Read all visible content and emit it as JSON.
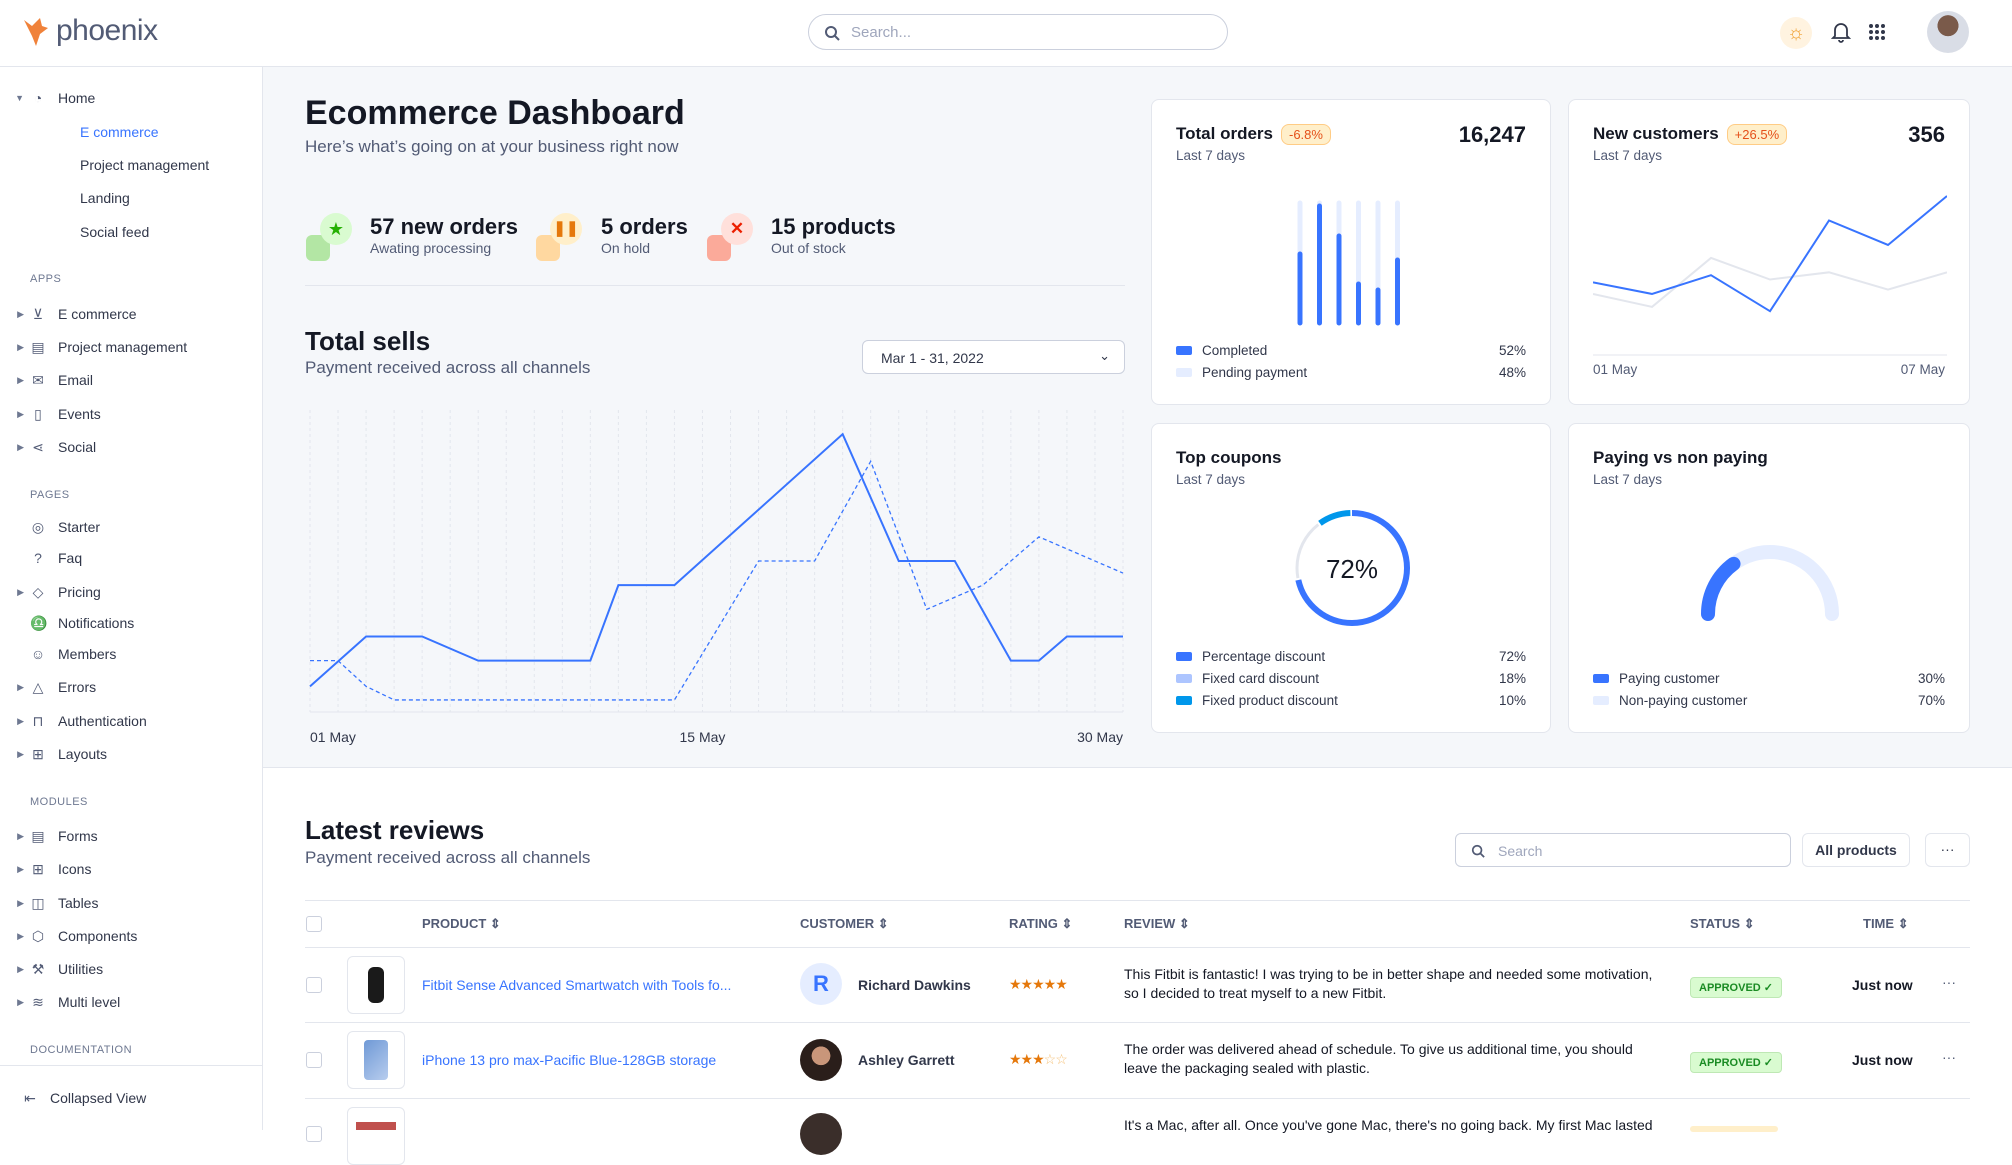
{
  "header": {
    "brand": "phoenix",
    "search_placeholder": "Search...",
    "icons": [
      "sun-icon",
      "bell-icon",
      "apps-grid-icon",
      "user-avatar"
    ]
  },
  "sidebar": {
    "home": {
      "label": "Home",
      "children": [
        "E commerce",
        "Project management",
        "Landing",
        "Social feed"
      ],
      "active": "E commerce"
    },
    "sections": [
      {
        "title": "APPS",
        "items": [
          {
            "label": "E commerce",
            "icon": "cart-icon",
            "expandable": true
          },
          {
            "label": "Project management",
            "icon": "clipboard-icon",
            "expandable": true
          },
          {
            "label": "Email",
            "icon": "mail-icon",
            "expandable": true
          },
          {
            "label": "Events",
            "icon": "bookmark-icon",
            "expandable": true
          },
          {
            "label": "Social",
            "icon": "share-icon",
            "expandable": true
          }
        ]
      },
      {
        "title": "PAGES",
        "items": [
          {
            "label": "Starter",
            "icon": "compass-icon",
            "expandable": false
          },
          {
            "label": "Faq",
            "icon": "help-circle-icon",
            "expandable": false
          },
          {
            "label": "Pricing",
            "icon": "tag-icon",
            "expandable": true
          },
          {
            "label": "Notifications",
            "icon": "bell-icon",
            "expandable": false
          },
          {
            "label": "Members",
            "icon": "users-icon",
            "expandable": false
          },
          {
            "label": "Errors",
            "icon": "alert-triangle-icon",
            "expandable": true
          },
          {
            "label": "Authentication",
            "icon": "lock-icon",
            "expandable": true
          },
          {
            "label": "Layouts",
            "icon": "layout-icon",
            "expandable": true
          }
        ]
      },
      {
        "title": "MODULES",
        "items": [
          {
            "label": "Forms",
            "icon": "file-text-icon",
            "expandable": true
          },
          {
            "label": "Icons",
            "icon": "grid-icon",
            "expandable": true
          },
          {
            "label": "Tables",
            "icon": "columns-icon",
            "expandable": true
          },
          {
            "label": "Components",
            "icon": "package-icon",
            "expandable": true
          },
          {
            "label": "Utilities",
            "icon": "tool-icon",
            "expandable": true
          },
          {
            "label": "Multi level",
            "icon": "layers-icon",
            "expandable": true
          }
        ]
      },
      {
        "title": "DOCUMENTATION",
        "items": []
      }
    ],
    "collapse_label": "Collapsed View"
  },
  "dashboard": {
    "title": "Ecommerce Dashboard",
    "subtitle": "Here’s what’s going on at your business right now",
    "stats": [
      {
        "value": "57 new orders",
        "label": "Awating processing",
        "icon": "star-icon",
        "color": "#25b003"
      },
      {
        "value": "5 orders",
        "label": "On hold",
        "icon": "pause-icon",
        "color": "#e5780b"
      },
      {
        "value": "15 products",
        "label": "Out of stock",
        "icon": "x-icon",
        "color": "#ec1f00"
      }
    ]
  },
  "total_sells": {
    "title": "Total sells",
    "subtitle": "Payment received across all channels",
    "date_range": "Mar 1 - 31, 2022"
  },
  "cards": {
    "total_orders": {
      "title": "Total orders",
      "badge": "-6.8%",
      "value": "16,247",
      "period": "Last 7 days",
      "legend": [
        {
          "label": "Completed",
          "value": "52%",
          "color": "#3874ff"
        },
        {
          "label": "Pending payment",
          "value": "48%",
          "color": "#e5edff"
        }
      ]
    },
    "new_customers": {
      "title": "New customers",
      "badge": "+26.5%",
      "value": "356",
      "period": "Last 7 days",
      "x_start": "01 May",
      "x_end": "07 May"
    },
    "top_coupons": {
      "title": "Top coupons",
      "period": "Last 7 days",
      "center": "72%",
      "legend": [
        {
          "label": "Percentage discount",
          "value": "72%",
          "color": "#3874ff"
        },
        {
          "label": "Fixed card discount",
          "value": "18%",
          "color": "#adc5ff"
        },
        {
          "label": "Fixed product discount",
          "value": "10%",
          "color": "#0097eb"
        }
      ]
    },
    "paying": {
      "title": "Paying vs non paying",
      "period": "Last 7 days",
      "legend": [
        {
          "label": "Paying customer",
          "value": "30%",
          "color": "#3874ff"
        },
        {
          "label": "Non-paying customer",
          "value": "70%",
          "color": "#e5edff"
        }
      ]
    }
  },
  "chart_data": [
    {
      "type": "line",
      "xlabels": [
        "01 May",
        "15 May",
        "30 May"
      ],
      "xlim": [
        1,
        30
      ],
      "ylim": [
        0,
        100
      ],
      "grid": "vertical",
      "series": [
        {
          "style": "solid",
          "color": "#3874ff",
          "x": [
            1,
            3,
            5,
            7,
            11,
            12,
            14,
            20,
            22,
            24,
            26,
            27,
            28,
            30
          ],
          "y": [
            8.5,
            25,
            25,
            17,
            17,
            42,
            42,
            92,
            50,
            50,
            17,
            17,
            25,
            25
          ]
        },
        {
          "style": "dashed",
          "color": "#3874ff",
          "x": [
            1,
            2,
            3,
            4,
            14,
            17,
            19,
            21,
            23,
            25,
            27,
            30
          ],
          "y": [
            17,
            17,
            8.5,
            4,
            4,
            50,
            50,
            83,
            34,
            42,
            58,
            46
          ]
        }
      ]
    },
    {
      "type": "bar",
      "stacked": true,
      "categories": [
        1,
        2,
        3,
        4,
        5,
        6,
        7
      ],
      "completed": [
        60,
        100,
        75,
        35,
        30,
        55,
        60
      ],
      "pending": [
        40,
        0,
        25,
        65,
        70,
        45,
        40
      ]
    },
    {
      "type": "line",
      "xlabels": [
        "01 May",
        "07 May"
      ],
      "ylim": [
        0,
        100
      ],
      "series": [
        {
          "color": "#3874ff",
          "y": [
            40,
            32,
            45,
            20,
            83,
            66,
            100
          ]
        },
        {
          "color": "#e3e6ed",
          "y": [
            32,
            23,
            57,
            42,
            47,
            35,
            47
          ]
        }
      ]
    },
    {
      "type": "pie",
      "values": [
        72,
        18,
        10
      ]
    },
    {
      "type": "pie",
      "variant": "gauge",
      "values": [
        30,
        70
      ]
    }
  ],
  "reviews": {
    "title": "Latest reviews",
    "subtitle": "Payment received across all channels",
    "search_placeholder": "Search",
    "filter_label": "All products",
    "more_label": "···",
    "columns": [
      "PRODUCT",
      "CUSTOMER",
      "RATING",
      "REVIEW",
      "STATUS",
      "TIME"
    ],
    "rows": [
      {
        "product": "Fitbit Sense Advanced Smartwatch with Tools fo...",
        "customer": "Richard Dawkins",
        "initial": "R",
        "rating": 5,
        "review": "This Fitbit is fantastic! I was trying to be in better shape and needed some motivation, so I decided to treat myself to a new Fitbit.",
        "status": "APPROVED ✓",
        "time": "Just now"
      },
      {
        "product": "iPhone 13 pro max-Pacific Blue-128GB storage",
        "customer": "Ashley Garrett",
        "initial": "",
        "rating": 3,
        "review": "The order was delivered ahead of schedule. To give us additional time, you should leave the packaging sealed with plastic.",
        "status": "APPROVED ✓",
        "time": "Just now"
      },
      {
        "product": "",
        "customer": "",
        "initial": "",
        "rating": 0,
        "review": "It's a Mac, after all. Once you've gone Mac, there's no going back. My first Mac lasted",
        "status": "",
        "time": ""
      }
    ]
  }
}
